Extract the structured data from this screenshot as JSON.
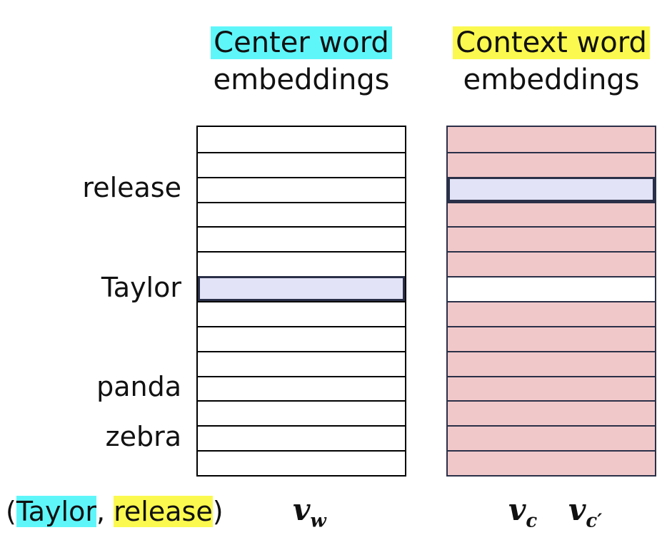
{
  "headings": {
    "center": {
      "highlight": "Center word",
      "rest": "embeddings",
      "highlight_color": "#5ff6fa"
    },
    "context": {
      "highlight": "Context word",
      "rest": "embeddings",
      "highlight_color": "#fbf94f"
    }
  },
  "word_labels": [
    {
      "text": "release",
      "row": 2
    },
    {
      "text": "Taylor",
      "row": 6
    },
    {
      "text": "panda",
      "row": 10
    },
    {
      "text": "zebra",
      "row": 12
    }
  ],
  "matrices": {
    "row_count": 14,
    "center": {
      "fill": "#ffffff",
      "highlight_row": 6,
      "highlight_fill": "#e3e3f7"
    },
    "context": {
      "fill": "#f1c8c9",
      "highlight_row": 2,
      "highlight_fill": "#e3e3f7",
      "white_row": 6
    }
  },
  "pair": {
    "open": "(",
    "first": "Taylor",
    "separator": ", ",
    "second": "release",
    "close": ")",
    "first_color": "#5ff6fa",
    "second_color": "#fbf94f"
  },
  "vectors": {
    "center": {
      "base": "v",
      "sub": "w"
    },
    "context": {
      "base": "v",
      "sub": "c"
    },
    "context_neg": {
      "base": "v",
      "sub": "c′"
    }
  }
}
